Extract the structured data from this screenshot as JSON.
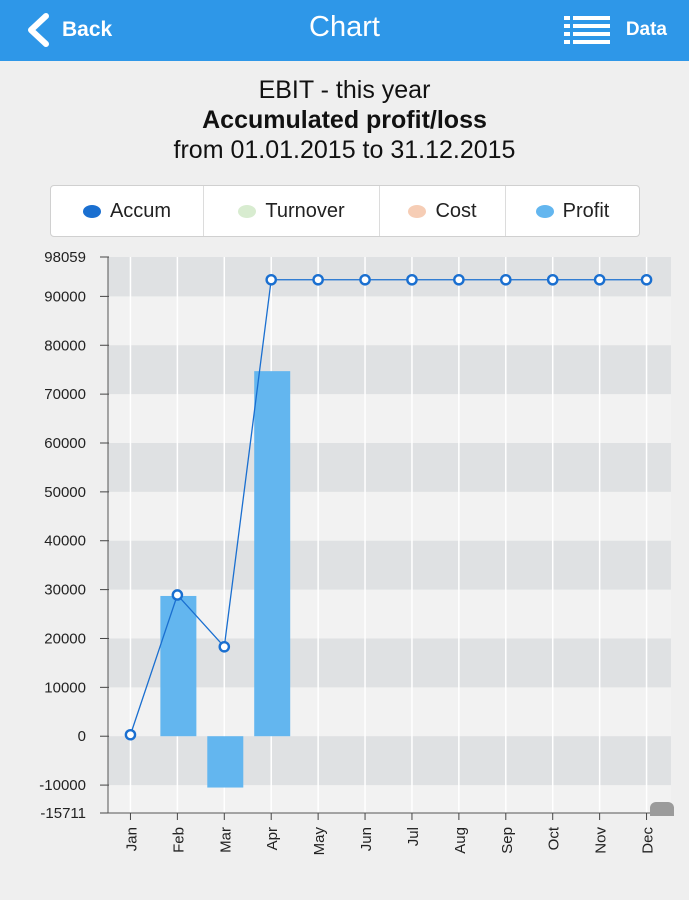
{
  "nav": {
    "back_label": "Back",
    "title": "Chart",
    "data_label": "Data",
    "back_icon": "chevron-left-icon",
    "data_icon": "list-icon",
    "bar_color": "#2e97e8"
  },
  "header": {
    "line1": "EBIT - this year",
    "line2": "Accumulated profit/loss",
    "line3": "from 01.01.2015 to 31.12.2015"
  },
  "legend": [
    {
      "label": "Accum",
      "color": "#1a6fd0"
    },
    {
      "label": "Turnover",
      "color": "#d8ecd0"
    },
    {
      "label": "Cost",
      "color": "#f6cdb5"
    },
    {
      "label": "Profit",
      "color": "#63b6ef"
    }
  ],
  "chart_data": {
    "type": "bar",
    "categories": [
      "Jan",
      "Feb",
      "Mar",
      "Apr",
      "May",
      "Jun",
      "Jul",
      "Aug",
      "Sep",
      "Oct",
      "Nov",
      "Dec"
    ],
    "series": [
      {
        "name": "Profit",
        "kind": "bar",
        "color": "#63b6ef",
        "values": [
          0,
          28700,
          -10500,
          74700,
          0,
          0,
          0,
          0,
          0,
          0,
          0,
          0
        ]
      },
      {
        "name": "Accum",
        "kind": "line",
        "color": "#1a6fd0",
        "values": [
          300,
          28900,
          18300,
          93400,
          93400,
          93400,
          93400,
          93400,
          93400,
          93400,
          93400,
          93400
        ]
      }
    ],
    "ylim": [
      -15711,
      98059
    ],
    "yticks": [
      98059,
      90000,
      80000,
      70000,
      60000,
      50000,
      40000,
      30000,
      20000,
      10000,
      0,
      -10000,
      -15711
    ],
    "grid": true,
    "xlabel": "",
    "ylabel": "",
    "title": "Accumulated profit/loss"
  }
}
